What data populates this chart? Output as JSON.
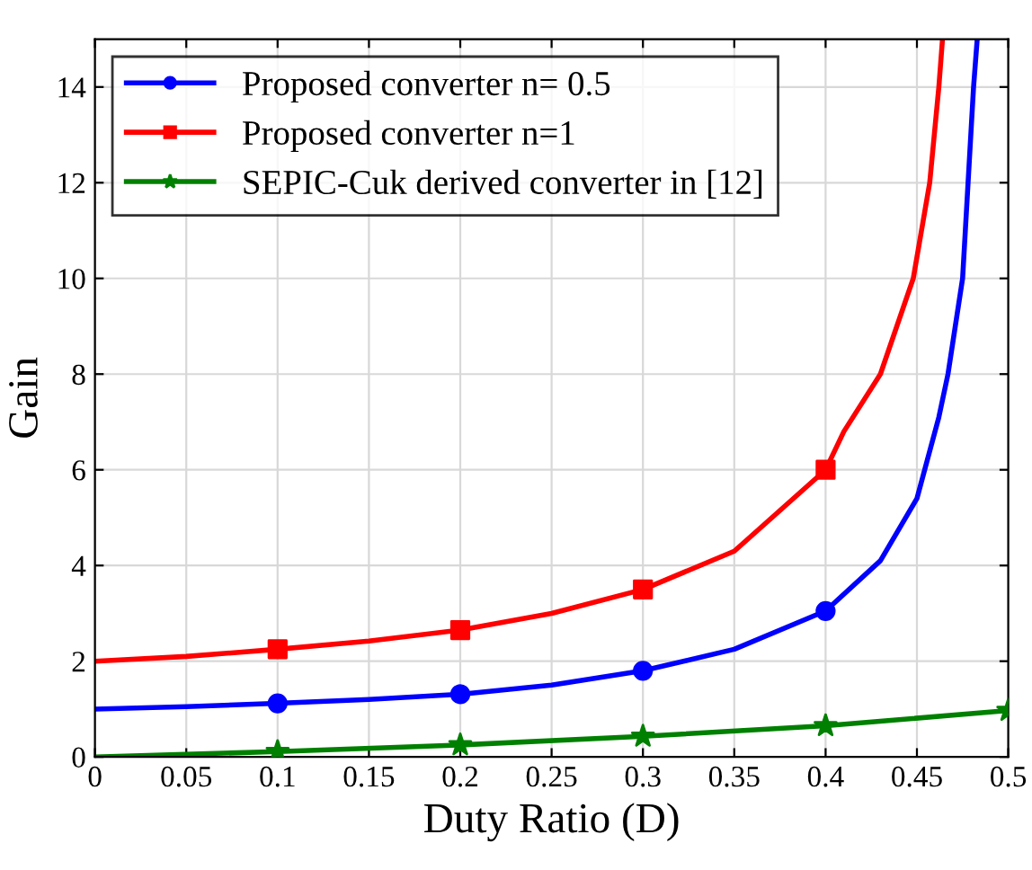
{
  "chart_data": {
    "type": "line",
    "xlabel": "Duty Ratio (D)",
    "ylabel": "Gain",
    "xlim": [
      0,
      0.5
    ],
    "xticks": [
      0,
      0.05,
      0.1,
      0.15,
      0.2,
      0.25,
      0.3,
      0.35,
      0.4,
      0.45,
      0.5
    ],
    "ylim": [
      0,
      15
    ],
    "yticks": [
      0,
      2,
      4,
      6,
      8,
      10,
      12,
      14
    ],
    "grid": true,
    "legend": "top left",
    "series": [
      {
        "color": "#0000ff",
        "x": [
          0,
          0.05,
          0.1,
          0.15,
          0.2,
          0.25,
          0.3,
          0.35,
          0.4,
          0.43,
          0.45,
          0.462,
          0.467,
          0.475,
          0.478,
          0.481,
          0.483
        ],
        "values": [
          1,
          1.05,
          1.12,
          1.2,
          1.31,
          1.5,
          1.8,
          2.25,
          3.05,
          4.1,
          5.4,
          7.1,
          8,
          10,
          12,
          14,
          15
        ]
      },
      {
        "name": "Proposed converter n= 0.5",
        "type": "scatter",
        "marker": "circle",
        "color": "#0000ff",
        "x": [
          0.1,
          0.2,
          0.3,
          0.4
        ],
        "values": [
          1.12,
          1.31,
          1.8,
          3.05
        ]
      },
      {
        "color": "#ff0000",
        "x": [
          0,
          0.05,
          0.1,
          0.15,
          0.2,
          0.25,
          0.3,
          0.35,
          0.4,
          0.41,
          0.43,
          0.448,
          0.457,
          0.462,
          0.464
        ],
        "values": [
          2,
          2.1,
          2.25,
          2.42,
          2.65,
          3.0,
          3.5,
          4.3,
          6.0,
          6.8,
          8,
          10,
          12,
          14,
          15
        ]
      },
      {
        "name": "Proposed converter n=1",
        "type": "scatter",
        "marker": "square",
        "color": "#ff0000",
        "x": [
          0.1,
          0.2,
          0.3,
          0.4
        ],
        "values": [
          2.25,
          2.65,
          3.5,
          6.0
        ]
      },
      {
        "color": "#008000",
        "x": [
          0,
          0.1,
          0.2,
          0.3,
          0.4,
          0.5
        ],
        "values": [
          0,
          0.11,
          0.25,
          0.43,
          0.65,
          0.97
        ]
      },
      {
        "name": "SEPIC-Cuk derived converter in [12]",
        "type": "scatter",
        "marker": "star",
        "color": "#008000",
        "x": [
          0.1,
          0.2,
          0.3,
          0.4,
          0.5
        ],
        "values": [
          0.11,
          0.25,
          0.43,
          0.65,
          0.97
        ]
      }
    ]
  }
}
